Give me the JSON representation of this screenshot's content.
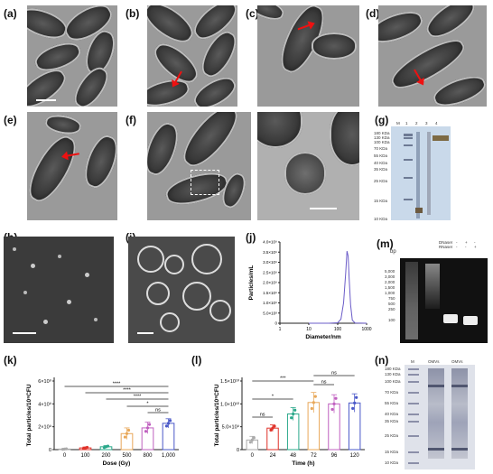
{
  "panels": {
    "a": "(a)",
    "b": "(b)",
    "c": "(c)",
    "d": "(d)",
    "e": "(e)",
    "f": "(f)",
    "g": "(g)",
    "h": "(h)",
    "i": "(i)",
    "j": "(j)",
    "m": "(m)",
    "k": "(k)",
    "l": "(l)",
    "n": "(n)"
  },
  "gel_g": {
    "lanes": [
      "M",
      "1",
      "2",
      "3",
      "4"
    ],
    "markers": [
      "180 KDa",
      "130 KDa",
      "100 KDa",
      "70 KDa",
      "55 KDa",
      "40 KDa",
      "35 KDa",
      "25 KDa",
      "15 KDa",
      "10 KDa"
    ]
  },
  "gel_m": {
    "bp_label": "bp",
    "lane_m": "M",
    "rows": [
      {
        "name": "DNaseI",
        "signs": [
          "-",
          "+",
          "-"
        ]
      },
      {
        "name": "RNaseI",
        "signs": [
          "-",
          "-",
          "+"
        ]
      }
    ],
    "markers": [
      "5,000",
      "3,000",
      "2,000",
      "1,500",
      "1,000",
      "750",
      "500",
      "250",
      "100"
    ]
  },
  "gel_n": {
    "lanes": [
      "M",
      "OMVs",
      "OMVs"
    ],
    "markers": [
      "180 KDa",
      "130 KDa",
      "100 KDa",
      "70 KDa",
      "55 KDa",
      "40 KDa",
      "35 KDa",
      "25 KDa",
      "15 KDa",
      "10 KDa"
    ]
  },
  "colors": {
    "k_series": [
      "#aaaaaa",
      "#e0322a",
      "#2aa88a",
      "#e8a85a",
      "#c060c0",
      "#4a58c8"
    ],
    "l_series": [
      "#aaaaaa",
      "#e0322a",
      "#2aa88a",
      "#e8a85a",
      "#c060c0",
      "#4a58c8"
    ],
    "line_j": "#6b5cc8"
  },
  "chart_data": [
    {
      "id": "j",
      "type": "line",
      "xlabel": "Diameter/nm",
      "ylabel": "Particles/mL",
      "x_scale": "log",
      "x_ticks": [
        "1",
        "10",
        "100",
        "1000"
      ],
      "y_ticks": [
        "0",
        "5.0×10⁸",
        "1.0×10⁹",
        "1.5×10⁹",
        "2.0×10⁹",
        "2.5×10⁹",
        "3.0×10⁹",
        "3.5×10⁹",
        "4.0×10⁹"
      ],
      "ylim": [
        0,
        4000000000
      ],
      "x": [
        10,
        50,
        100,
        130,
        160,
        190,
        210,
        230,
        250,
        280,
        320,
        400,
        1000
      ],
      "y": [
        0,
        0,
        20000000,
        200000000,
        1000000000,
        2500000000,
        3550000000,
        3300000000,
        2200000000,
        900000000,
        150000000,
        10000000,
        0
      ]
    },
    {
      "id": "k",
      "type": "bar",
      "xlabel": "Dose (Gy)",
      "ylabel": "Total particles/10⁸CFU",
      "categories": [
        "0",
        "100",
        "200",
        "500",
        "800",
        "1,000"
      ],
      "y_ticks": [
        "0",
        "2×10⁹",
        "4×10⁹",
        "6×10⁹"
      ],
      "ylim": [
        0,
        6000000000
      ],
      "values": [
        50000000,
        150000000,
        250000000,
        1400000000,
        1900000000,
        2300000000
      ],
      "errors": [
        30000000,
        80000000,
        100000000,
        500000000,
        500000000,
        400000000
      ],
      "significance": [
        "****",
        "****",
        "****",
        "*",
        "ns"
      ]
    },
    {
      "id": "l",
      "type": "bar",
      "xlabel": "Time (h)",
      "ylabel": "Total particles/10⁸CFU",
      "categories": [
        "0",
        "24",
        "48",
        "72",
        "96",
        "120"
      ],
      "y_ticks": [
        "0",
        "5.0×10⁹",
        "1.0×10¹⁰",
        "1.5×10¹⁰"
      ],
      "ylim": [
        0,
        15000000000
      ],
      "values": [
        2100000000,
        4700000000,
        7800000000,
        10300000000,
        10000000000,
        10200000000
      ],
      "errors": [
        800000000,
        700000000,
        1400000000,
        2200000000,
        2000000000,
        2000000000
      ],
      "significance": [
        "***",
        "ns",
        "ns",
        "*",
        "ns"
      ]
    }
  ]
}
